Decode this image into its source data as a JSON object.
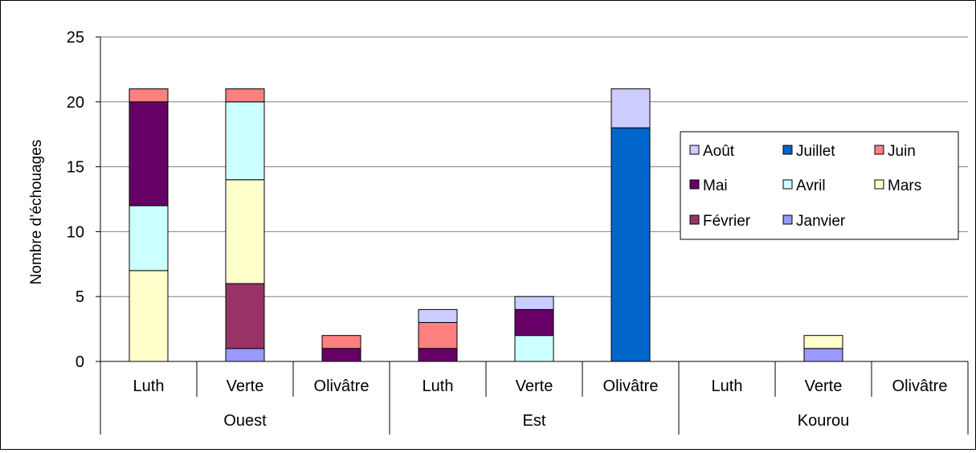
{
  "chart_data": {
    "type": "bar",
    "stacked": true,
    "ylabel": "Nombre d’échouages",
    "ylim": [
      0,
      25
    ],
    "yticks": [
      0,
      5,
      10,
      15,
      20,
      25
    ],
    "grid": true,
    "legend_position": "right",
    "groups": [
      {
        "name": "Ouest",
        "categories": [
          "Luth",
          "Verte",
          "Olivâtre"
        ]
      },
      {
        "name": "Est",
        "categories": [
          "Luth",
          "Verte",
          "Olivâtre"
        ]
      },
      {
        "name": "Kourou",
        "categories": [
          "Luth",
          "Verte",
          "Olivâtre"
        ]
      }
    ],
    "categories": [
      "Luth",
      "Verte",
      "Olivâtre",
      "Luth",
      "Verte",
      "Olivâtre",
      "Luth",
      "Verte",
      "Olivâtre"
    ],
    "series": [
      {
        "name": "Janvier",
        "color": "#9999ff",
        "values": [
          0,
          1,
          0,
          0,
          0,
          0,
          0,
          1,
          0
        ]
      },
      {
        "name": "Février",
        "color": "#993366",
        "values": [
          0,
          5,
          0,
          0,
          0,
          0,
          0,
          0,
          0
        ]
      },
      {
        "name": "Mars",
        "color": "#ffffcc",
        "values": [
          7,
          8,
          0,
          0,
          0,
          0,
          0,
          1,
          0
        ]
      },
      {
        "name": "Avril",
        "color": "#ccffff",
        "values": [
          5,
          6,
          0,
          0,
          2,
          0,
          0,
          0,
          0
        ]
      },
      {
        "name": "Mai",
        "color": "#660066",
        "values": [
          8,
          0,
          1,
          1,
          2,
          0,
          0,
          0,
          0
        ]
      },
      {
        "name": "Juin",
        "color": "#ff8080",
        "values": [
          1,
          1,
          1,
          2,
          0,
          0,
          0,
          0,
          0
        ]
      },
      {
        "name": "Juillet",
        "color": "#0066cc",
        "values": [
          0,
          0,
          0,
          0,
          0,
          18,
          0,
          0,
          0
        ]
      },
      {
        "name": "Août",
        "color": "#ccccff",
        "values": [
          0,
          0,
          0,
          1,
          1,
          3,
          0,
          0,
          0
        ]
      }
    ],
    "legend_order": [
      "Août",
      "Juillet",
      "Juin",
      "Mai",
      "Avril",
      "Mars",
      "Février",
      "Janvier"
    ]
  }
}
